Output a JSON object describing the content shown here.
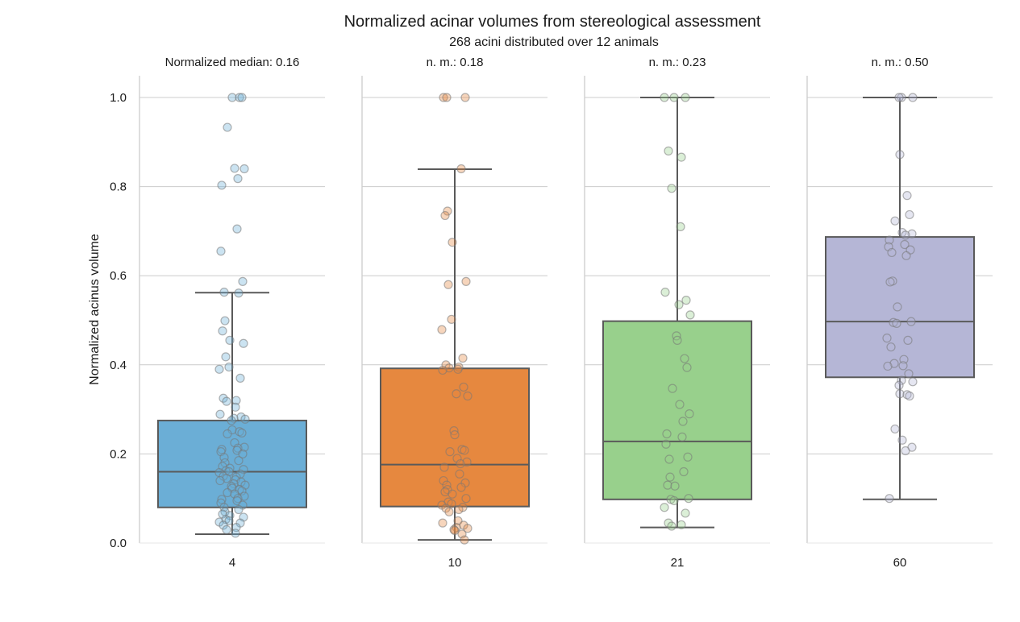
{
  "chart_data": {
    "type": "box",
    "title": "Normalized acinar volumes from stereological assessment",
    "subtitle": "268 acini distributed over 12 animals",
    "ylabel": "Normalized acinus volume",
    "ylim": [
      0,
      1.05
    ],
    "yticks": [
      "0.0",
      "0.2",
      "0.4",
      "0.6",
      "0.8",
      "1.0"
    ],
    "grid": "horizontal",
    "panels": [
      {
        "category": "4",
        "annotation": "Normalized median: 0.16",
        "color": "#6BAED6",
        "box": {
          "whisker_low": 0.02,
          "q1": 0.08,
          "median": 0.16,
          "q3": 0.275,
          "whisker_high": 0.562
        },
        "points": [
          1.0,
          1.0,
          1.0,
          0.933,
          0.841,
          0.84,
          0.818,
          0.803,
          0.705,
          0.655,
          0.587,
          0.563,
          0.561,
          0.499,
          0.476,
          0.455,
          0.448,
          0.418,
          0.395,
          0.39,
          0.37,
          0.325,
          0.32,
          0.318,
          0.305,
          0.289,
          0.283,
          0.28,
          0.278,
          0.275,
          0.254,
          0.25,
          0.247,
          0.245,
          0.225,
          0.215,
          0.213,
          0.21,
          0.208,
          0.205,
          0.2,
          0.192,
          0.185,
          0.18,
          0.172,
          0.168,
          0.165,
          0.162,
          0.16,
          0.158,
          0.155,
          0.15,
          0.148,
          0.145,
          0.142,
          0.14,
          0.137,
          0.133,
          0.13,
          0.127,
          0.123,
          0.12,
          0.117,
          0.113,
          0.11,
          0.105,
          0.1,
          0.098,
          0.095,
          0.09,
          0.085,
          0.08,
          0.075,
          0.07,
          0.065,
          0.062,
          0.058,
          0.053,
          0.05,
          0.047,
          0.045,
          0.04,
          0.035,
          0.03,
          0.022
        ]
      },
      {
        "category": "10",
        "annotation": "n. m.: 0.18",
        "color": "#E6883F",
        "box": {
          "whisker_low": 0.007,
          "q1": 0.082,
          "median": 0.176,
          "q3": 0.392,
          "whisker_high": 0.839
        },
        "points": [
          1.0,
          1.0,
          1.0,
          0.84,
          0.745,
          0.735,
          0.675,
          0.587,
          0.58,
          0.502,
          0.479,
          0.415,
          0.4,
          0.395,
          0.393,
          0.39,
          0.388,
          0.35,
          0.335,
          0.33,
          0.252,
          0.243,
          0.21,
          0.208,
          0.205,
          0.19,
          0.182,
          0.178,
          0.17,
          0.155,
          0.14,
          0.135,
          0.13,
          0.125,
          0.12,
          0.115,
          0.11,
          0.1,
          0.092,
          0.088,
          0.085,
          0.08,
          0.078,
          0.075,
          0.07,
          0.05,
          0.045,
          0.04,
          0.035,
          0.033,
          0.03,
          0.028,
          0.02,
          0.007
        ]
      },
      {
        "category": "21",
        "annotation": "n. m.: 0.23",
        "color": "#98D08C",
        "box": {
          "whisker_low": 0.035,
          "q1": 0.098,
          "median": 0.228,
          "q3": 0.498,
          "whisker_high": 1.0
        },
        "points": [
          1.0,
          1.0,
          1.0,
          0.88,
          0.866,
          0.796,
          0.71,
          0.563,
          0.545,
          0.535,
          0.512,
          0.465,
          0.455,
          0.414,
          0.394,
          0.347,
          0.311,
          0.29,
          0.273,
          0.245,
          0.238,
          0.222,
          0.193,
          0.188,
          0.16,
          0.148,
          0.13,
          0.128,
          0.1,
          0.098,
          0.095,
          0.08,
          0.067,
          0.045,
          0.041,
          0.038
        ]
      },
      {
        "category": "60",
        "annotation": "n. m.: 0.50",
        "color": "#B5B6D6",
        "box": {
          "whisker_low": 0.098,
          "q1": 0.372,
          "median": 0.497,
          "q3": 0.687,
          "whisker_high": 1.0
        },
        "points": [
          1.0,
          1.0,
          1.0,
          0.872,
          0.78,
          0.737,
          0.723,
          0.697,
          0.694,
          0.691,
          0.68,
          0.67,
          0.665,
          0.658,
          0.652,
          0.645,
          0.588,
          0.586,
          0.53,
          0.497,
          0.495,
          0.493,
          0.46,
          0.455,
          0.44,
          0.412,
          0.403,
          0.398,
          0.397,
          0.38,
          0.365,
          0.362,
          0.354,
          0.335,
          0.333,
          0.33,
          0.256,
          0.231,
          0.215,
          0.207,
          0.1
        ]
      }
    ]
  }
}
